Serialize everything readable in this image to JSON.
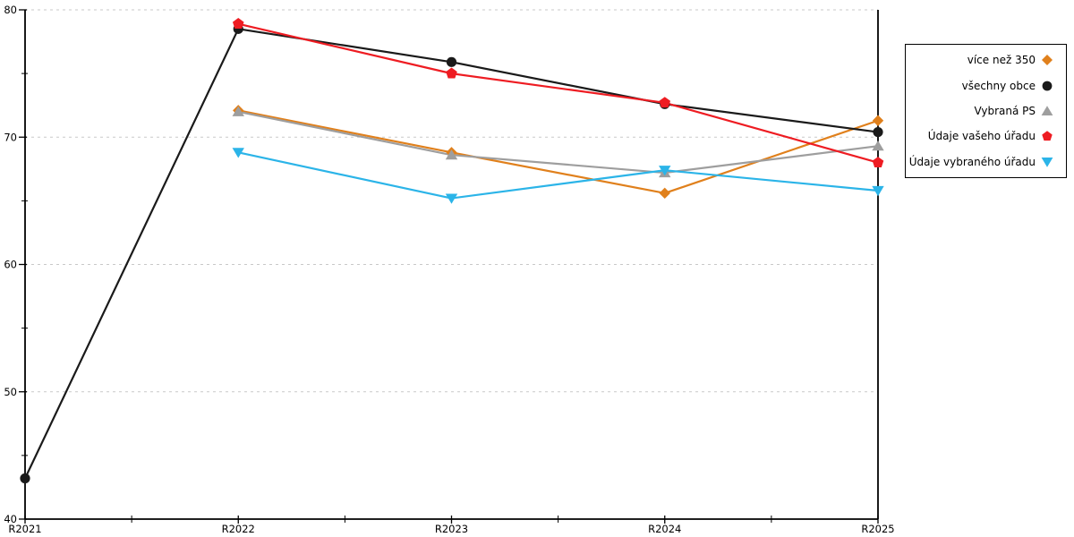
{
  "chart_data": {
    "type": "line",
    "title": "",
    "xlabel": "",
    "ylabel": "",
    "categories": [
      "R2021",
      "R2022",
      "R2023",
      "R2024",
      "R2025"
    ],
    "y_axis": {
      "min": 40,
      "max": 80,
      "major_ticks": [
        40,
        50,
        60,
        70,
        80
      ],
      "minor_ticks": [
        45,
        55,
        65,
        75
      ],
      "gridlines": [
        50,
        60,
        70,
        80
      ]
    },
    "series": [
      {
        "name": "více než 350",
        "color": "#E0801C",
        "marker": "diamond",
        "values": [
          null,
          72.1,
          68.8,
          65.6,
          71.3
        ]
      },
      {
        "name": "všechny obce",
        "color": "#1A1A1A",
        "marker": "circle",
        "values": [
          43.2,
          78.5,
          75.9,
          72.6,
          70.4
        ]
      },
      {
        "name": "Vybraná PS",
        "color": "#9E9E9E",
        "marker": "triangle-up",
        "values": [
          null,
          72.0,
          68.6,
          67.2,
          69.3
        ]
      },
      {
        "name": "Údaje vašeho úřadu",
        "color": "#EE1C22",
        "marker": "pentagon",
        "values": [
          null,
          78.9,
          75.0,
          72.7,
          68.0
        ]
      },
      {
        "name": "Údaje vybraného úřadu",
        "color": "#2BB4E8",
        "marker": "triangle-down",
        "values": [
          null,
          68.8,
          65.2,
          67.4,
          65.8
        ]
      }
    ],
    "legend_position": "right",
    "grid_on": true,
    "grid_color": "#C9C9C9",
    "axis_color": "#000000",
    "background_color": "#FFFFFF"
  }
}
